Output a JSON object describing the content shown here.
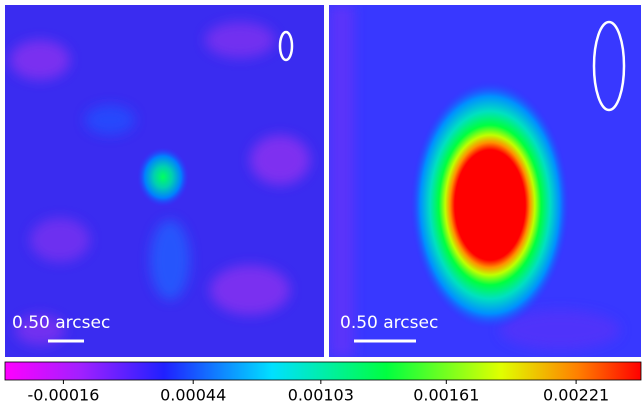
{
  "panels": [
    {
      "scale_label": "0.50 arcsec"
    },
    {
      "scale_label": "0.50 arcsec"
    }
  ],
  "colorbar": {
    "lim": [
      -0.00043,
      0.00251
    ],
    "ticks": [
      -0.00016,
      0.00044,
      0.00103,
      0.00161,
      0.00221
    ]
  }
}
